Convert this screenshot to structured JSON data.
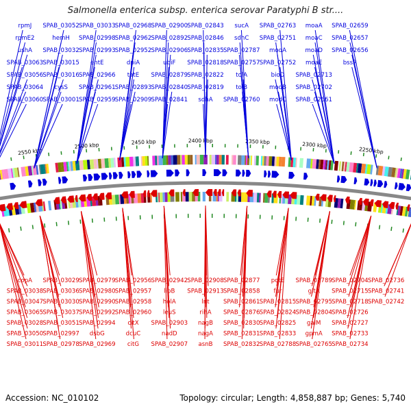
{
  "title": "Salmonella enterica subsp. enterica serovar Paratyphi B str....",
  "footer": {
    "accession": "Accession: NC_010102",
    "summary": "Topology: circular; Length: 4,858,887 bp; Genes: 5,740"
  },
  "colors": {
    "plus_strand": "#0000dd",
    "minus_strand": "#dd0000",
    "backbone": "#888888",
    "tick": "#228822"
  },
  "kbp_ticks": [
    "2550 kbp",
    "2500 kbp",
    "2450 kbp",
    "2400 kbp",
    "2350 kbp",
    "2300 kbp",
    "2250 kbp"
  ],
  "plus_labels": [
    "rpmJ",
    "rpmE2",
    "ushA",
    "SPAB_03063",
    "SPAB_03056",
    "SPAB_03064",
    "SPAB_03060",
    "SPAB_03052",
    "hemH",
    "SPAB_03032",
    "SPAB_03015",
    "SPAB_03016",
    "cysS",
    "SPAB_03001",
    "SPAB_03033",
    "SPAB_02998",
    "SPAB_02993",
    "entE",
    "SPAB_02966",
    "SPAB_02961",
    "SPAB_02959",
    "SPAB_02968",
    "SPAB_02962",
    "SPAB_02952",
    "dpiA",
    "tatE",
    "SPAB_02893",
    "SPAB_02909",
    "SPAB_02900",
    "SPAB_02892",
    "SPAB_02906",
    "ubiF",
    "SPAB_02879",
    "SPAB_02840",
    "SPAB_02841",
    "SPAB_02843",
    "SPAB_02846",
    "SPAB_02835",
    "SPAB_02818",
    "SPAB_02822",
    "SPAB_02819",
    "sdhA",
    "sucA",
    "sdhC",
    "SPAB_02787",
    "SPAB_02757",
    "tolA",
    "tolB",
    "SPAB_02760",
    "SPAB_02763",
    "SPAB_02751",
    "modA",
    "SPAB_02752",
    "bioD",
    "modB",
    "modC",
    "moaA",
    "moaC",
    "moaD",
    "moaE",
    "SPAB_02713",
    "SPAB_02702",
    "SPAB_02661",
    "SPAB_02659",
    "SPAB_02657",
    "SPAB_02656",
    "bssR"
  ],
  "minus_labels": [
    "copA",
    "SPAB_03038",
    "SPAB_03047",
    "SPAB_03065",
    "SPAB_03028",
    "SPAB_03050",
    "SPAB_03011",
    "SPAB_03029",
    "SPAB_03036",
    "SPAB_03030",
    "SPAB_03037",
    "SPAB_03051",
    "SPAB_02997",
    "SPAB_02978",
    "SPAB_02979",
    "SPAB_02980",
    "SPAB_02990",
    "SPAB_02992",
    "SPAB_02994",
    "dsbG",
    "SPAB_02969",
    "SPAB_02956",
    "SPAB_02957",
    "SPAB_02958",
    "SPAB_02960",
    "citX",
    "dcuC",
    "citG",
    "SPAB_02942",
    "lipB",
    "holA",
    "leuS",
    "SPAB_02903",
    "nadD",
    "SPAB_02907",
    "SPAB_02908",
    "SPAB_02913",
    "lnt",
    "rihA",
    "nagB",
    "nagA",
    "asnB",
    "SPAB_02877",
    "SPAB_02858",
    "SPAB_02861",
    "SPAB_02876",
    "SPAB_02830",
    "SPAB_02831",
    "SPAB_02832",
    "potE",
    "fur",
    "SPAB_02815",
    "SPAB_02824",
    "SPAB_02825",
    "SPAB_02833",
    "SPAB_02788",
    "SPAB_02789",
    "gltA",
    "SPAB_02795",
    "SPAB_02804",
    "galM",
    "gpmA",
    "SPAB_02765",
    "SPAB_02704",
    "SPAB_02715",
    "SPAB_02718",
    "SPAB_02726",
    "SPAB_02727",
    "SPAB_02733",
    "SPAB_02734",
    "SPAB_02736",
    "SPAB_02741",
    "SPAB_02742"
  ]
}
